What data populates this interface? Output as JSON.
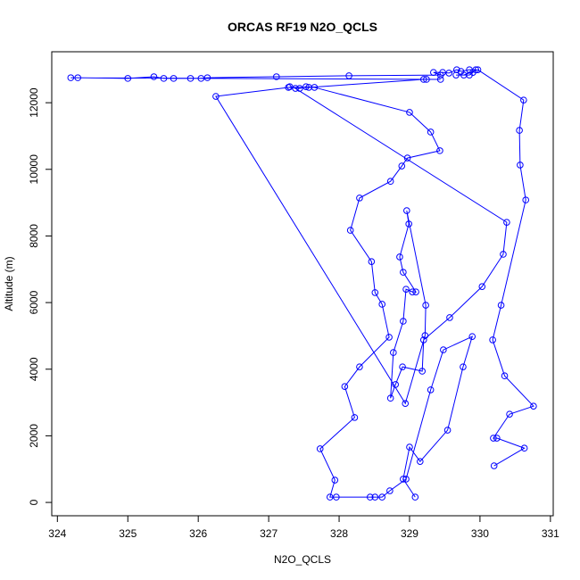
{
  "chart_data": {
    "type": "line",
    "title": "ORCAS RF19 N2O_QCLS",
    "x_label": "N2O_QCLS",
    "y_label": "Altitude (m)",
    "xlim": [
      323.92,
      331.04
    ],
    "ylim": [
      -400,
      13530
    ],
    "xticks": [
      324,
      325,
      326,
      327,
      328,
      329,
      330,
      331
    ],
    "yticks": [
      0,
      2000,
      4000,
      6000,
      8000,
      10000,
      12000
    ],
    "x": [
      329.08,
      328.91,
      329.0,
      329.15,
      329.54,
      329.76,
      329.89,
      329.48,
      329.3,
      328.95,
      328.72,
      328.61,
      328.51,
      328.44,
      327.96,
      327.87,
      327.94,
      327.73,
      328.22,
      328.08,
      328.29,
      328.71,
      328.61,
      328.51,
      328.46,
      328.16,
      328.29,
      328.73,
      328.89,
      328.97,
      329.43,
      329.3,
      329.0,
      327.65,
      327.53,
      327.44,
      327.3,
      327.38,
      330.38,
      330.33,
      330.03,
      329.57,
      329.2,
      329.18,
      328.9,
      328.8,
      328.73,
      328.77,
      328.91,
      328.95,
      329.04,
      329.09,
      328.91,
      328.86,
      328.99,
      328.96,
      329.23,
      329.22,
      328.94,
      326.25,
      327.28,
      327.57,
      329.2,
      329.24,
      329.44,
      324.19,
      324.29,
      325.0,
      325.37,
      325.51,
      325.65,
      325.89,
      326.04,
      326.13,
      327.11,
      328.14,
      329.44,
      329.34,
      329.47,
      329.56,
      329.67,
      329.73,
      329.85,
      329.94,
      329.9,
      329.85,
      329.66,
      329.77,
      329.97,
      330.62,
      330.56,
      330.57,
      330.65,
      330.3,
      330.18,
      330.35,
      330.76,
      330.42,
      330.19,
      330.24,
      330.63,
      330.2
    ],
    "series": [
      {
        "color": "#0000ff",
        "values": [
          160,
          700,
          1660,
          1230,
          2170,
          4070,
          4980,
          4580,
          3380,
          700,
          350,
          160,
          160,
          160,
          160,
          160,
          670,
          1610,
          2550,
          3480,
          4070,
          4960,
          5950,
          6300,
          7230,
          8170,
          9140,
          9640,
          10100,
          10340,
          10560,
          11120,
          11710,
          12460,
          12480,
          12430,
          12480,
          12430,
          8410,
          7450,
          6480,
          5550,
          4880,
          3940,
          4070,
          3540,
          3130,
          4500,
          5440,
          6400,
          6320,
          6320,
          6910,
          7370,
          8360,
          8760,
          5920,
          5010,
          2970,
          12190,
          12460,
          12460,
          12700,
          12700,
          12700,
          12750,
          12750,
          12730,
          12780,
          12730,
          12730,
          12730,
          12730,
          12750,
          12780,
          12810,
          12830,
          12910,
          12910,
          12890,
          12990,
          12940,
          12990,
          12990,
          12910,
          12830,
          12830,
          12830,
          12990,
          12080,
          11170,
          10130,
          9080,
          5920,
          4880,
          3800,
          2890,
          2650,
          1930,
          1930,
          1630,
          1100
        ]
      }
    ]
  }
}
